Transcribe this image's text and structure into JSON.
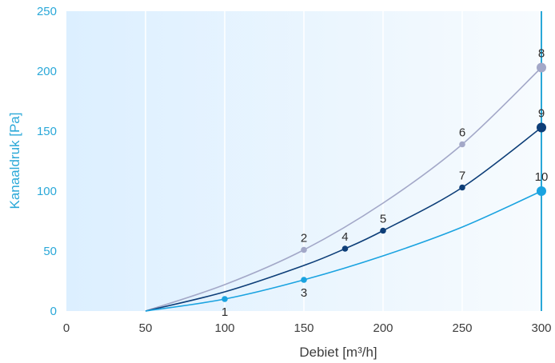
{
  "colors": {
    "background_left": "#dcefff",
    "background_right": "#f7fbfe",
    "grid": "#ffffff",
    "x_tick": "#3d3d3d",
    "y_tick": "#2aa8d8",
    "vline": "#2aa8d8",
    "upper_curve": "#a3a8c8",
    "middle_curve": "#0d3e78",
    "lower_curve": "#1aa3e0"
  },
  "chart_data": {
    "type": "line",
    "title": "",
    "xlabel": "Debiet [m³/h]",
    "ylabel": "Kanaaldruk [Pa]",
    "xlim": [
      0,
      300
    ],
    "ylim": [
      0,
      250
    ],
    "x_ticks": [
      "0",
      "50",
      "100",
      "150",
      "200",
      "250",
      "300"
    ],
    "y_ticks": [
      "0",
      "50",
      "100",
      "150",
      "200",
      "250"
    ],
    "grid": "vertical",
    "vertical_line_x": 300,
    "series": [
      {
        "color": "#a3a8c8",
        "curve": [
          [
            50,
            0
          ],
          [
            100,
            22
          ],
          [
            150,
            51
          ],
          [
            200,
            90
          ],
          [
            250,
            139
          ],
          [
            300,
            203
          ]
        ],
        "points": [
          {
            "label": "2",
            "x": 150,
            "y": 51
          },
          {
            "label": "6",
            "x": 250,
            "y": 139
          },
          {
            "label": "8",
            "x": 300,
            "y": 203,
            "large": true
          }
        ]
      },
      {
        "color": "#0d3e78",
        "curve": [
          [
            50,
            0
          ],
          [
            100,
            16
          ],
          [
            150,
            38
          ],
          [
            176,
            52
          ],
          [
            200,
            67
          ],
          [
            250,
            103
          ],
          [
            300,
            153
          ]
        ],
        "points": [
          {
            "label": "4",
            "x": 176,
            "y": 52
          },
          {
            "label": "5",
            "x": 200,
            "y": 67
          },
          {
            "label": "7",
            "x": 250,
            "y": 103
          },
          {
            "label": "9",
            "x": 300,
            "y": 153,
            "large": true
          }
        ]
      },
      {
        "color": "#1aa3e0",
        "curve": [
          [
            50,
            0
          ],
          [
            100,
            10
          ],
          [
            150,
            26
          ],
          [
            200,
            46
          ],
          [
            250,
            70
          ],
          [
            300,
            100
          ]
        ],
        "points": [
          {
            "label": "1",
            "x": 100,
            "y": 10
          },
          {
            "label": "3",
            "x": 150,
            "y": 26
          },
          {
            "label": "10",
            "x": 300,
            "y": 100,
            "large": true
          }
        ]
      }
    ]
  }
}
